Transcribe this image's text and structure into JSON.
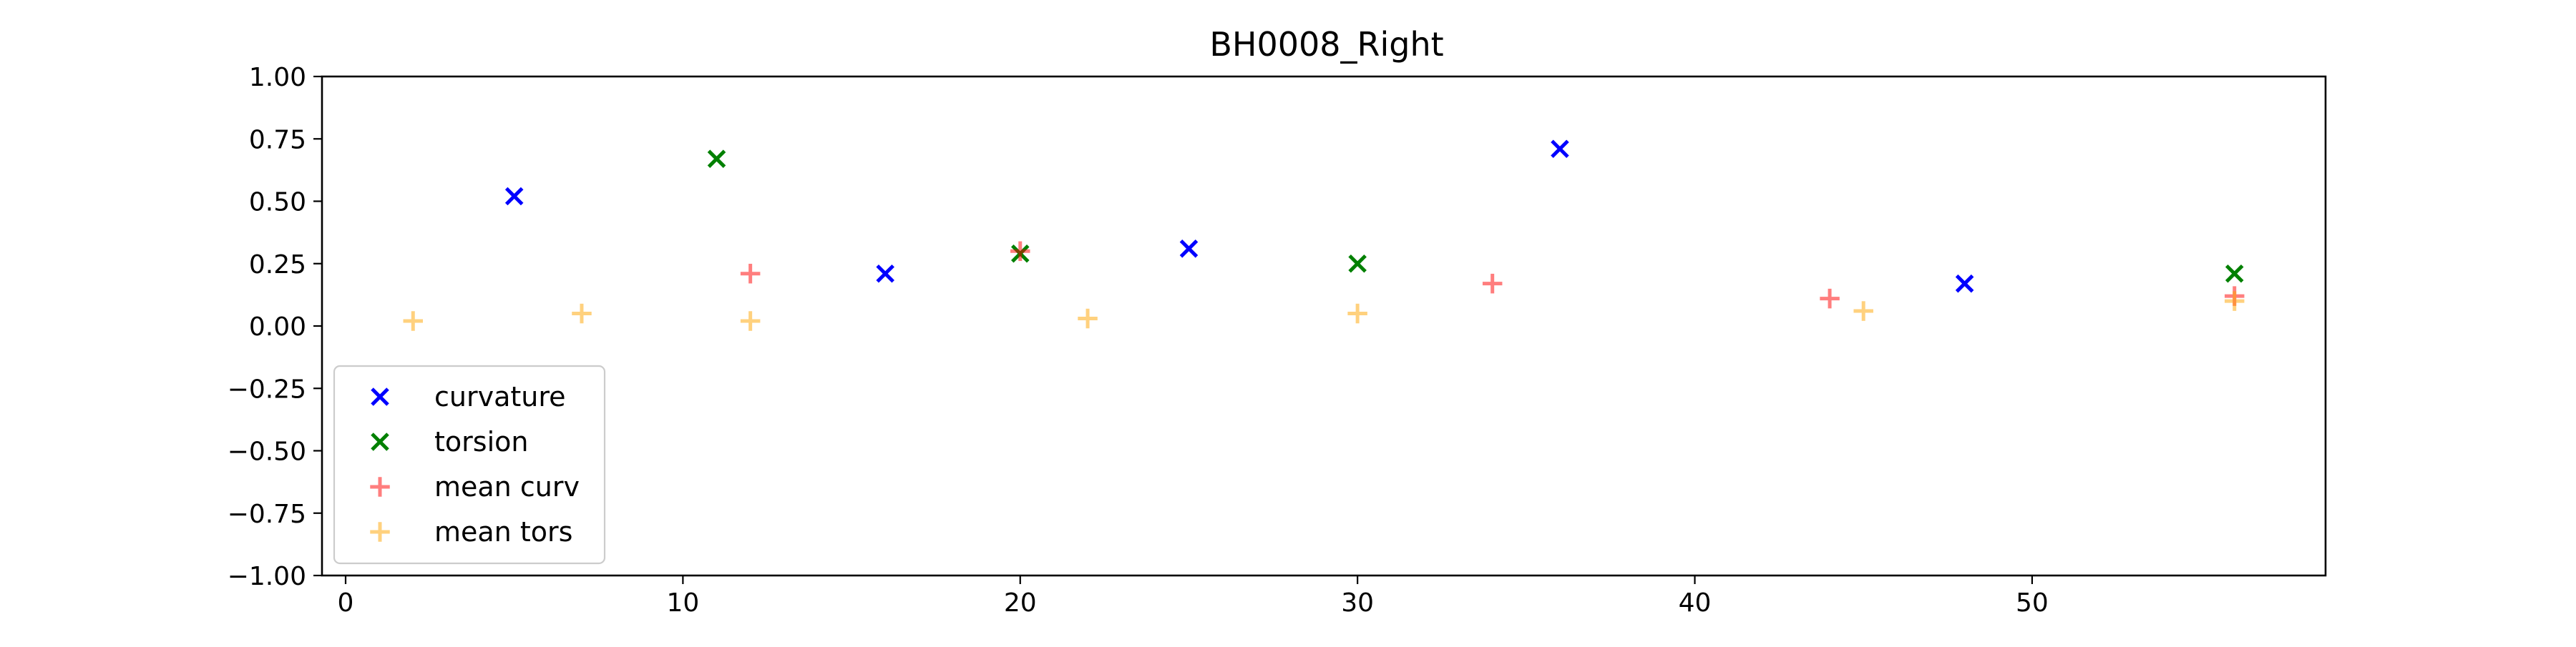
{
  "chart_data": {
    "type": "scatter",
    "title": "BH0008_Right",
    "xlabel": "",
    "ylabel": "",
    "xlim": [
      -0.7,
      58.7
    ],
    "ylim": [
      -1.0,
      1.0
    ],
    "x_ticks": [
      0,
      10,
      20,
      30,
      40,
      50
    ],
    "x_tick_labels": [
      "0",
      "10",
      "20",
      "30",
      "40",
      "50"
    ],
    "y_ticks": [
      1.0,
      0.75,
      0.5,
      0.25,
      0.0,
      -0.25,
      -0.5,
      -0.75,
      -1.0
    ],
    "y_tick_labels": [
      "1.00",
      "0.75",
      "0.50",
      "0.25",
      "0.00",
      "−0.25",
      "−0.50",
      "−0.75",
      "−1.00"
    ],
    "grid": false,
    "legend_position": "lower-left",
    "series": [
      {
        "name": "curvature",
        "marker": "x",
        "color": "#0000ff",
        "opacity": 1.0,
        "x": [
          5,
          16,
          25,
          36,
          48
        ],
        "y": [
          0.52,
          0.21,
          0.31,
          0.71,
          0.17
        ]
      },
      {
        "name": "torsion",
        "marker": "x",
        "color": "#008000",
        "opacity": 1.0,
        "x": [
          11,
          20,
          30,
          56
        ],
        "y": [
          0.67,
          0.29,
          0.25,
          0.21
        ]
      },
      {
        "name": "mean curv",
        "marker": "+",
        "color": "#ff0000",
        "opacity": 0.5,
        "x": [
          12,
          20,
          34,
          44,
          56
        ],
        "y": [
          0.21,
          0.3,
          0.17,
          0.11,
          0.12
        ]
      },
      {
        "name": "mean tors",
        "marker": "+",
        "color": "#ffa500",
        "opacity": 0.5,
        "x": [
          2,
          7,
          12,
          22,
          30,
          45,
          56
        ],
        "y": [
          0.02,
          0.05,
          0.02,
          0.03,
          0.05,
          0.06,
          0.1
        ]
      }
    ]
  }
}
